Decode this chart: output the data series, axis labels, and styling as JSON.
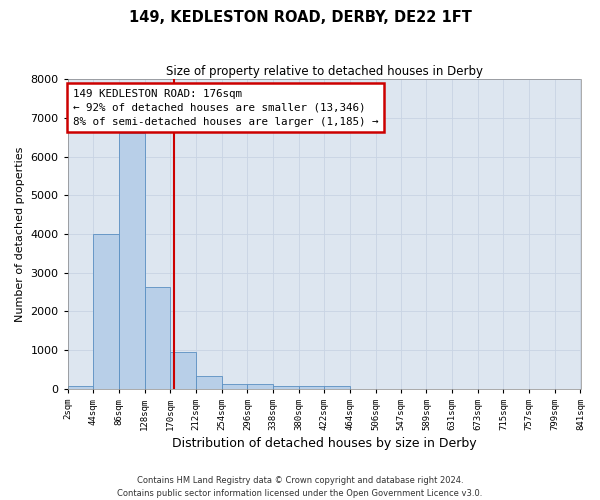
{
  "title": "149, KEDLESTON ROAD, DERBY, DE22 1FT",
  "subtitle": "Size of property relative to detached houses in Derby",
  "xlabel": "Distribution of detached houses by size in Derby",
  "ylabel": "Number of detached properties",
  "footer_line1": "Contains HM Land Registry data © Crown copyright and database right 2024.",
  "footer_line2": "Contains public sector information licensed under the Open Government Licence v3.0.",
  "annotation_title": "149 KEDLESTON ROAD: 176sqm",
  "annotation_line1": "← 92% of detached houses are smaller (13,346)",
  "annotation_line2": "8% of semi-detached houses are larger (1,185) →",
  "property_sqm": 176,
  "bin_edges": [
    2,
    44,
    86,
    128,
    170,
    212,
    254,
    296,
    338,
    380,
    422,
    464,
    506,
    547,
    589,
    631,
    673,
    715,
    757,
    799,
    841
  ],
  "bar_heights": [
    80,
    4000,
    6600,
    2620,
    950,
    330,
    130,
    130,
    60,
    60,
    80,
    0,
    0,
    0,
    0,
    0,
    0,
    0,
    0,
    0
  ],
  "bar_color": "#b8cfe8",
  "bar_edge_color": "#5a8fc2",
  "vline_color": "#cc0000",
  "vline_x": 176,
  "annotation_box_color": "#cc0000",
  "bg_color": "#dde6f0",
  "grid_color": "#c8d4e4",
  "ylim": [
    0,
    8000
  ],
  "xlim_left": 2,
  "xlim_right": 841,
  "yticks": [
    0,
    1000,
    2000,
    3000,
    4000,
    5000,
    6000,
    7000,
    8000
  ],
  "tick_labels": [
    "2sqm",
    "44sqm",
    "86sqm",
    "128sqm",
    "170sqm",
    "212sqm",
    "254sqm",
    "296sqm",
    "338sqm",
    "380sqm",
    "422sqm",
    "464sqm",
    "506sqm",
    "547sqm",
    "589sqm",
    "631sqm",
    "673sqm",
    "715sqm",
    "757sqm",
    "799sqm",
    "841sqm"
  ]
}
